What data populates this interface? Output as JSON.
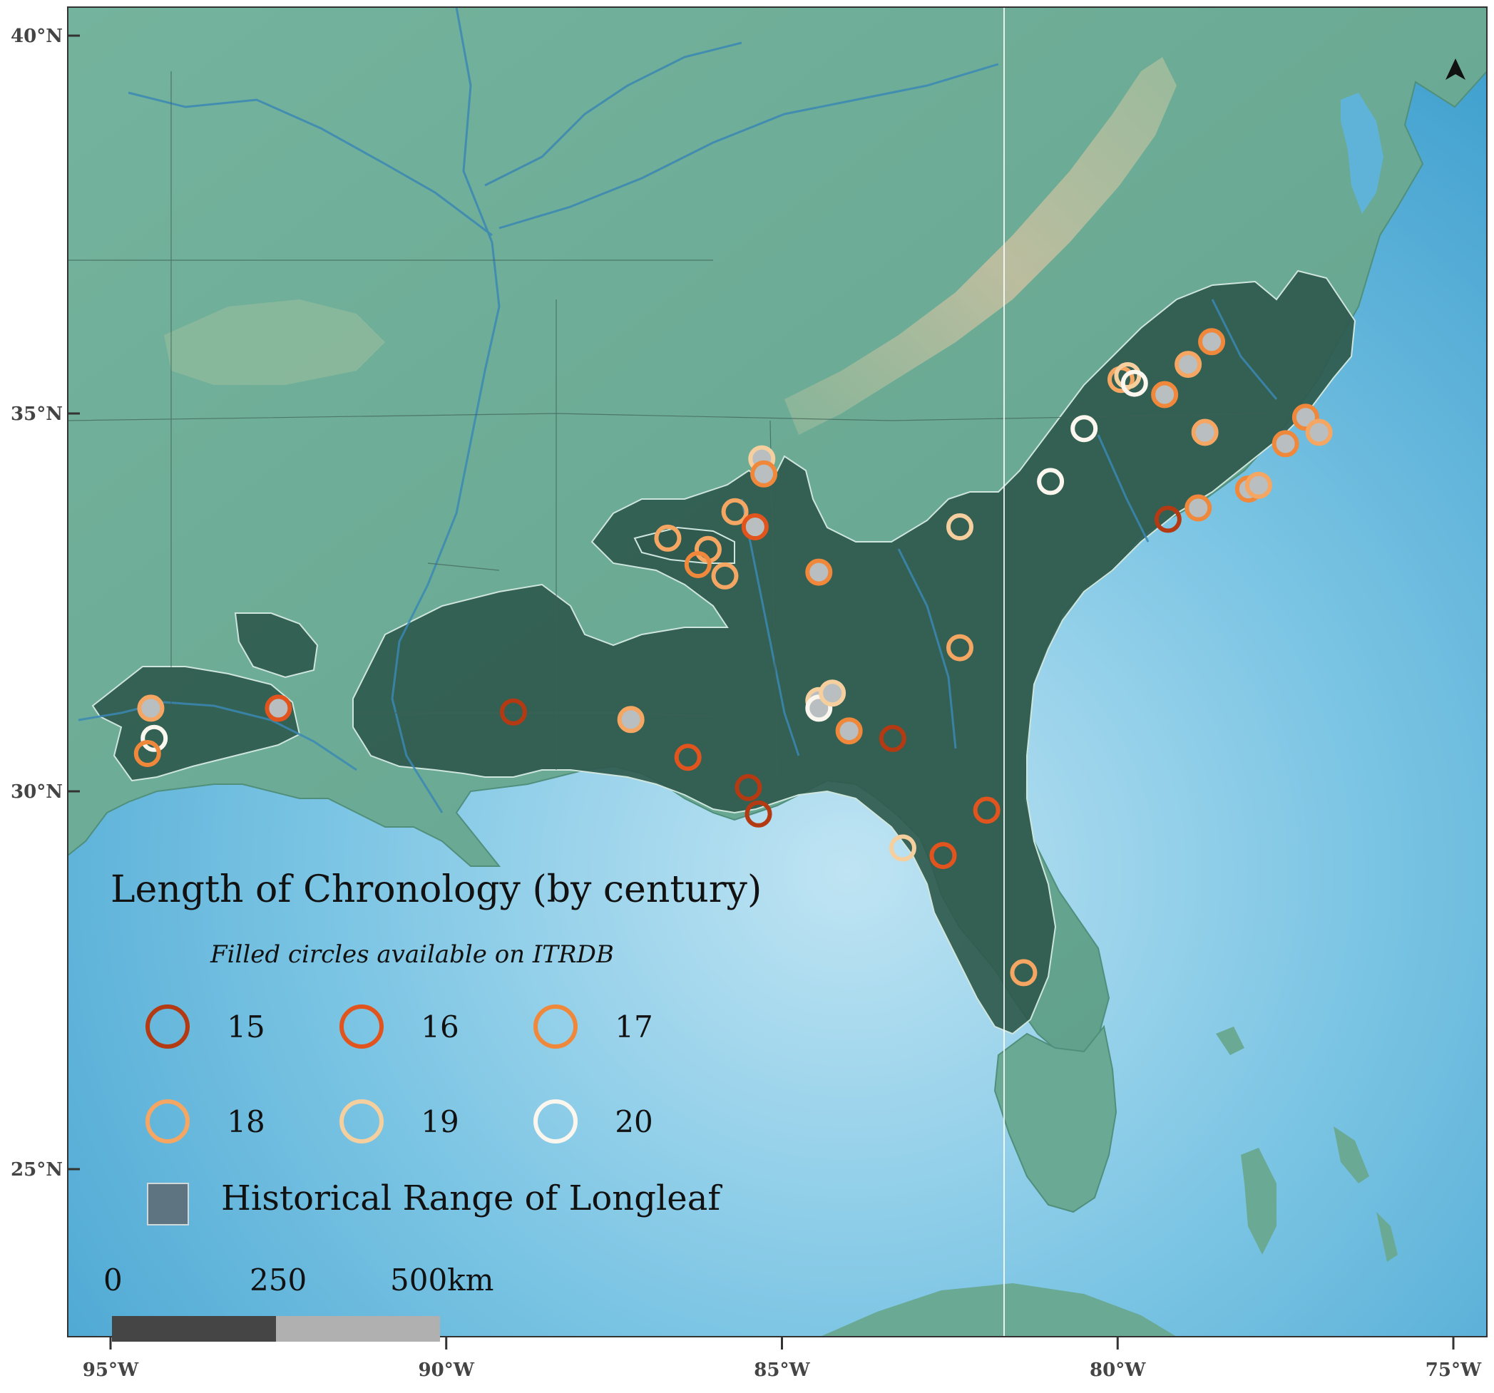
{
  "map": {
    "lon_range": [
      -95.0,
      -75.0
    ],
    "lat_range": [
      22.5,
      40.2
    ],
    "colors": {
      "ocean": "#5fb3d8",
      "ocean_deep": "#3a9ccc",
      "land": "#6fae98",
      "land_high": "#c9bfa0",
      "range_fill": "#2f5a4d",
      "range_stroke": "#cfe6de",
      "river": "#3b88b4",
      "border": "#4d6e64",
      "frame": "#333333"
    },
    "north_arrow_icon": "north-arrow-icon",
    "lat_ticks": [
      {
        "value": 40,
        "label": "40°N"
      },
      {
        "value": 35,
        "label": "35°N"
      },
      {
        "value": 30,
        "label": "30°N"
      },
      {
        "value": 25,
        "label": "25°N"
      }
    ],
    "lon_ticks": [
      {
        "value": -95,
        "label": "95°W"
      },
      {
        "value": -90,
        "label": "90°W"
      },
      {
        "value": -85,
        "label": "85°W"
      },
      {
        "value": -80,
        "label": "80°W"
      },
      {
        "value": -75,
        "label": "75°W"
      }
    ]
  },
  "legend": {
    "title": "Length of Chronology (by century)",
    "subtitle": "Filled circles available on ITRDB",
    "classes": [
      {
        "century": "15",
        "color": "#b33a12"
      },
      {
        "century": "16",
        "color": "#e2541e"
      },
      {
        "century": "17",
        "color": "#f0883c"
      },
      {
        "century": "18",
        "color": "#f4a662"
      },
      {
        "century": "19",
        "color": "#f6cf9f"
      },
      {
        "century": "20",
        "color": "#fbf6ee"
      }
    ],
    "range_label": "Historical Range of Longleaf",
    "range_swatch_color": "#5e7480",
    "scale_labels": [
      "0",
      "250",
      "500km"
    ]
  },
  "sites": [
    {
      "lon": -94.4,
      "lat": 31.1,
      "century": "18",
      "filled": true
    },
    {
      "lon": -94.35,
      "lat": 30.7,
      "century": "20",
      "filled": false
    },
    {
      "lon": -94.45,
      "lat": 30.5,
      "century": "17",
      "filled": false
    },
    {
      "lon": -92.5,
      "lat": 31.1,
      "century": "16",
      "filled": true
    },
    {
      "lon": -89.0,
      "lat": 31.05,
      "century": "15",
      "filled": false
    },
    {
      "lon": -87.25,
      "lat": 30.95,
      "century": "18",
      "filled": true
    },
    {
      "lon": -86.4,
      "lat": 30.45,
      "century": "16",
      "filled": false
    },
    {
      "lon": -86.7,
      "lat": 33.35,
      "century": "18",
      "filled": false
    },
    {
      "lon": -86.1,
      "lat": 33.2,
      "century": "18",
      "filled": false
    },
    {
      "lon": -86.25,
      "lat": 33.0,
      "century": "17",
      "filled": false
    },
    {
      "lon": -85.85,
      "lat": 32.85,
      "century": "18",
      "filled": false
    },
    {
      "lon": -85.7,
      "lat": 33.7,
      "century": "18",
      "filled": false
    },
    {
      "lon": -85.4,
      "lat": 33.5,
      "century": "16",
      "filled": true
    },
    {
      "lon": -85.3,
      "lat": 34.4,
      "century": "19",
      "filled": true
    },
    {
      "lon": -85.27,
      "lat": 34.2,
      "century": "17",
      "filled": true
    },
    {
      "lon": -84.45,
      "lat": 32.9,
      "century": "17",
      "filled": true
    },
    {
      "lon": -84.45,
      "lat": 31.2,
      "century": "19",
      "filled": true
    },
    {
      "lon": -84.45,
      "lat": 31.1,
      "century": "20",
      "filled": true
    },
    {
      "lon": -84.25,
      "lat": 31.3,
      "century": "19",
      "filled": true
    },
    {
      "lon": -84.0,
      "lat": 30.8,
      "century": "17",
      "filled": true
    },
    {
      "lon": -83.35,
      "lat": 30.7,
      "century": "15",
      "filled": false
    },
    {
      "lon": -85.5,
      "lat": 30.05,
      "century": "15",
      "filled": false
    },
    {
      "lon": -85.35,
      "lat": 29.7,
      "century": "15",
      "filled": false
    },
    {
      "lon": -82.35,
      "lat": 33.5,
      "century": "19",
      "filled": false
    },
    {
      "lon": -82.35,
      "lat": 31.9,
      "century": "18",
      "filled": false
    },
    {
      "lon": -81.95,
      "lat": 29.75,
      "century": "16",
      "filled": false
    },
    {
      "lon": -82.6,
      "lat": 29.15,
      "century": "16",
      "filled": false
    },
    {
      "lon": -83.2,
      "lat": 29.25,
      "century": "19",
      "filled": false
    },
    {
      "lon": -81.4,
      "lat": 27.6,
      "century": "18",
      "filled": false
    },
    {
      "lon": -81.0,
      "lat": 34.1,
      "century": "20",
      "filled": false
    },
    {
      "lon": -80.5,
      "lat": 34.8,
      "century": "20",
      "filled": false
    },
    {
      "lon": -79.95,
      "lat": 35.45,
      "century": "18",
      "filled": false
    },
    {
      "lon": -79.85,
      "lat": 35.5,
      "century": "19",
      "filled": false
    },
    {
      "lon": -79.75,
      "lat": 35.4,
      "century": "20",
      "filled": false
    },
    {
      "lon": -79.3,
      "lat": 35.25,
      "century": "17",
      "filled": true
    },
    {
      "lon": -79.25,
      "lat": 33.6,
      "century": "15",
      "filled": false
    },
    {
      "lon": -78.95,
      "lat": 35.65,
      "century": "18",
      "filled": true
    },
    {
      "lon": -78.6,
      "lat": 35.95,
      "century": "17",
      "filled": true
    },
    {
      "lon": -78.7,
      "lat": 34.75,
      "century": "18",
      "filled": true
    },
    {
      "lon": -78.8,
      "lat": 33.75,
      "century": "17",
      "filled": true
    },
    {
      "lon": -78.05,
      "lat": 34.0,
      "century": "17",
      "filled": true
    },
    {
      "lon": -77.9,
      "lat": 34.05,
      "century": "18",
      "filled": true
    },
    {
      "lon": -77.5,
      "lat": 34.6,
      "century": "17",
      "filled": true
    },
    {
      "lon": -77.2,
      "lat": 34.95,
      "century": "17",
      "filled": true
    },
    {
      "lon": -77.0,
      "lat": 34.75,
      "century": "18",
      "filled": true
    }
  ]
}
